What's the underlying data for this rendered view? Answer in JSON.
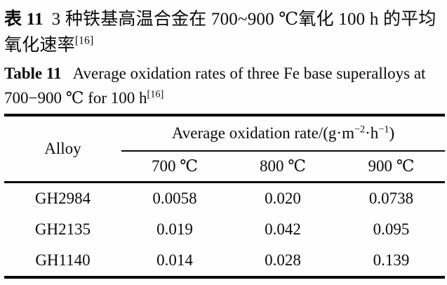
{
  "titles": {
    "chinese": {
      "label": "表 11",
      "text": "3 种铁基高温合金在 700~900 ℃氧化 100 h 的平均氧化速率",
      "reference": "[16]"
    },
    "english": {
      "label": "Table 11",
      "text": "Average oxidation rates of three Fe base superalloys at 700−900 ℃ for 100 h",
      "reference": "[16]"
    }
  },
  "table": {
    "row_header": "Alloy",
    "group_header": {
      "prefix": "Average oxidation rate/(g·m",
      "sup1": "−2",
      "mid": "·h",
      "sup2": "−1",
      "suffix": ")"
    },
    "columns": [
      "700 ℃",
      "800 ℃",
      "900 ℃"
    ],
    "rows": [
      {
        "alloy": "GH2984",
        "values": [
          "0.0058",
          "0.020",
          "0.0738"
        ]
      },
      {
        "alloy": "GH2135",
        "values": [
          "0.019",
          "0.042",
          "0.095"
        ]
      },
      {
        "alloy": "GH1140",
        "values": [
          "0.014",
          "0.028",
          "0.139"
        ]
      }
    ]
  },
  "colors": {
    "ink": "#0b0b0b",
    "paper": "#fefefe"
  }
}
